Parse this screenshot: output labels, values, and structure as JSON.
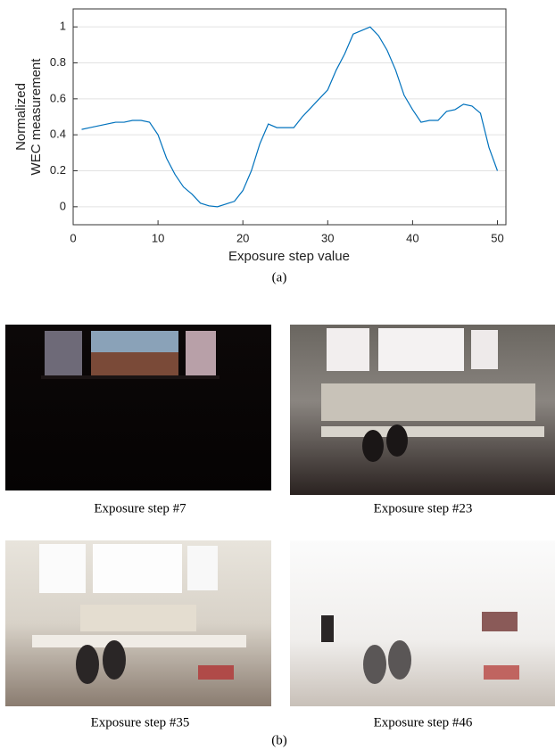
{
  "chart_data": {
    "type": "line",
    "xlabel": "Exposure step value",
    "ylabel": [
      "Normalized",
      "WEC measurement"
    ],
    "x": [
      1,
      2,
      3,
      4,
      5,
      6,
      7,
      8,
      9,
      10,
      11,
      12,
      13,
      14,
      15,
      16,
      17,
      18,
      19,
      20,
      21,
      22,
      23,
      24,
      25,
      26,
      27,
      28,
      29,
      30,
      31,
      32,
      33,
      34,
      35,
      36,
      37,
      38,
      39,
      40,
      41,
      42,
      43,
      44,
      45,
      46,
      47,
      48,
      49,
      50
    ],
    "values": [
      0.43,
      0.44,
      0.45,
      0.46,
      0.47,
      0.47,
      0.48,
      0.48,
      0.47,
      0.4,
      0.27,
      0.18,
      0.11,
      0.07,
      0.02,
      0.005,
      0,
      0.015,
      0.03,
      0.09,
      0.2,
      0.35,
      0.46,
      0.44,
      0.44,
      0.44,
      0.5,
      0.55,
      0.6,
      0.65,
      0.76,
      0.85,
      0.96,
      0.98,
      1.0,
      0.95,
      0.87,
      0.76,
      0.62,
      0.54,
      0.47,
      0.48,
      0.48,
      0.53,
      0.54,
      0.57,
      0.56,
      0.52,
      0.33,
      0.2
    ],
    "color": "#0072bd",
    "xlim": [
      0,
      51
    ],
    "xticks": [
      0,
      10,
      20,
      30,
      40,
      50
    ],
    "ylim": [
      -0.1,
      1.1
    ],
    "yticks": [
      0,
      0.2,
      0.4,
      0.6,
      0.8,
      1
    ],
    "grid": true
  },
  "caption_a": "(a)",
  "panels": [
    {
      "caption": "Exposure step #7"
    },
    {
      "caption": "Exposure step #23"
    },
    {
      "caption": "Exposure step #35"
    },
    {
      "caption": "Exposure step #46"
    }
  ],
  "caption_b": "(b)"
}
